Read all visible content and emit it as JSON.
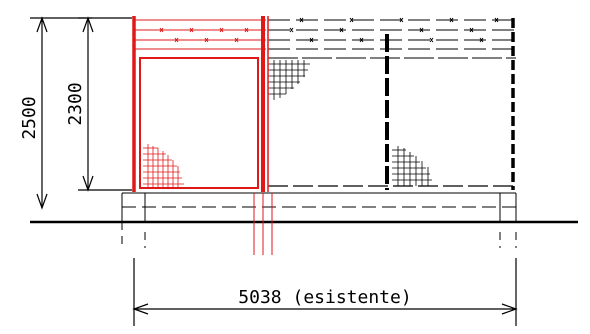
{
  "dimensions": {
    "height_outer": "2500",
    "height_inner": "2300",
    "width_existing": "5038 (esistente)"
  },
  "colors": {
    "new_structure": "#e01818",
    "existing_structure": "#000000",
    "background": "#ffffff"
  }
}
